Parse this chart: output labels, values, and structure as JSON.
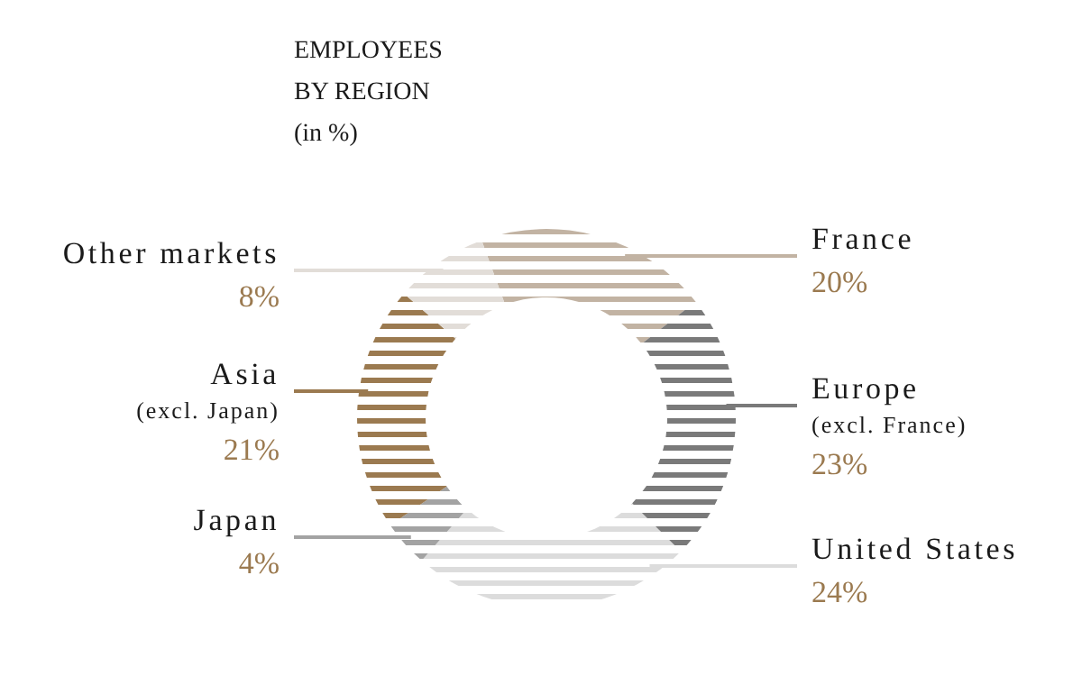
{
  "chart_data": {
    "type": "donut",
    "title": "EMPLOYEES BY REGION",
    "subtitle": "(in %)",
    "categories": [
      "France",
      "Europe (excl. France)",
      "United States",
      "Japan",
      "Asia (excl. Japan)",
      "Other markets"
    ],
    "values": [
      20,
      23,
      24,
      4,
      21,
      8
    ],
    "value_labels": [
      "20%",
      "23%",
      "24%",
      "4%",
      "21%",
      "8%"
    ],
    "colors": [
      "#c2b3a3",
      "#7a7a7a",
      "#dcdcdc",
      "#a3a3a3",
      "#9b7a50",
      "#e2ddd8"
    ]
  }
}
